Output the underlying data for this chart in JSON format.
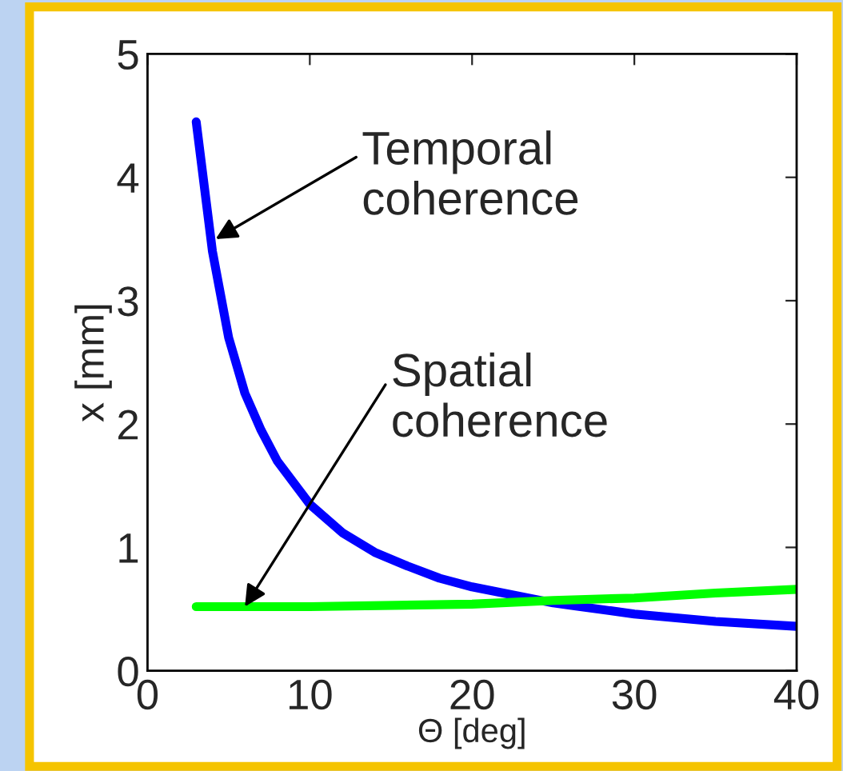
{
  "chart_data": {
    "type": "line",
    "xlabel": "Θ [deg]",
    "ylabel": "x [mm]",
    "xlim": [
      0,
      40
    ],
    "ylim": [
      0,
      5
    ],
    "xticks": [
      0,
      10,
      20,
      30,
      40
    ],
    "yticks": [
      0,
      1,
      2,
      3,
      4,
      5
    ],
    "grid": false,
    "legend": false,
    "series": [
      {
        "x": [
          3,
          4,
          5,
          6,
          7,
          8,
          10,
          12,
          14,
          16,
          18,
          20,
          25,
          30,
          35,
          40
        ],
        "values": [
          4.45,
          3.4,
          2.7,
          2.25,
          1.95,
          1.7,
          1.35,
          1.12,
          0.96,
          0.85,
          0.75,
          0.68,
          0.55,
          0.46,
          0.4,
          0.36
        ],
        "color": "#0000ff"
      },
      {
        "x": [
          3,
          10,
          20,
          25,
          30,
          35,
          40
        ],
        "values": [
          0.52,
          0.52,
          0.54,
          0.57,
          0.59,
          0.63,
          0.66
        ],
        "color": "#00ff00"
      }
    ],
    "annotations": [
      {
        "text": "Temporal\ncoherence",
        "x": 4.2,
        "y": 3.5
      },
      {
        "text": "Spatial\ncoherence",
        "x": 6,
        "y": 0.52
      }
    ]
  }
}
